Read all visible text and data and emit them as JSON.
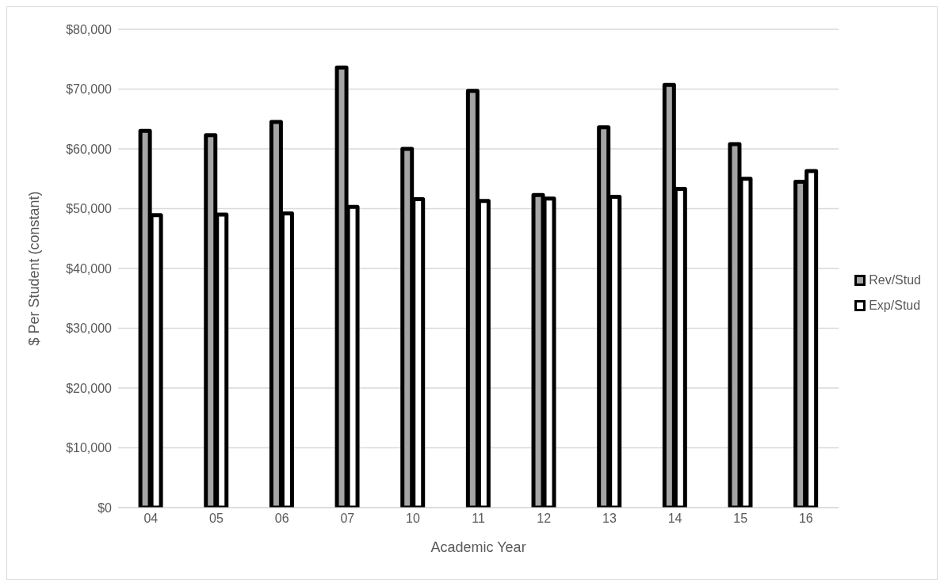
{
  "chart_data": {
    "type": "bar",
    "xlabel": "Academic Year",
    "ylabel": "$ Per Student (constant)",
    "categories": [
      "04",
      "05",
      "06",
      "07",
      "10",
      "11",
      "12",
      "13",
      "14",
      "15",
      "16"
    ],
    "series": [
      {
        "name": "Rev/Stud",
        "color": "#a5a5a5",
        "values": [
          63000,
          62300,
          64500,
          73600,
          60000,
          69700,
          52300,
          63600,
          70700,
          60800,
          54500
        ]
      },
      {
        "name": "Exp/Stud",
        "color": "#ffffff",
        "values": [
          48900,
          49000,
          49200,
          50300,
          51600,
          51300,
          51700,
          52000,
          53300,
          55000,
          56300
        ]
      }
    ],
    "ylim": [
      0,
      80000
    ],
    "yticks": [
      {
        "value": 0,
        "label": "$0"
      },
      {
        "value": 10000,
        "label": "$10,000"
      },
      {
        "value": 20000,
        "label": "$20,000"
      },
      {
        "value": 30000,
        "label": "$30,000"
      },
      {
        "value": 40000,
        "label": "$40,000"
      },
      {
        "value": 50000,
        "label": "$50,000"
      },
      {
        "value": 60000,
        "label": "$60,000"
      },
      {
        "value": 70000,
        "label": "$70,000"
      },
      {
        "value": 80000,
        "label": "$80,000"
      }
    ],
    "grid": "y",
    "legend": "right"
  }
}
